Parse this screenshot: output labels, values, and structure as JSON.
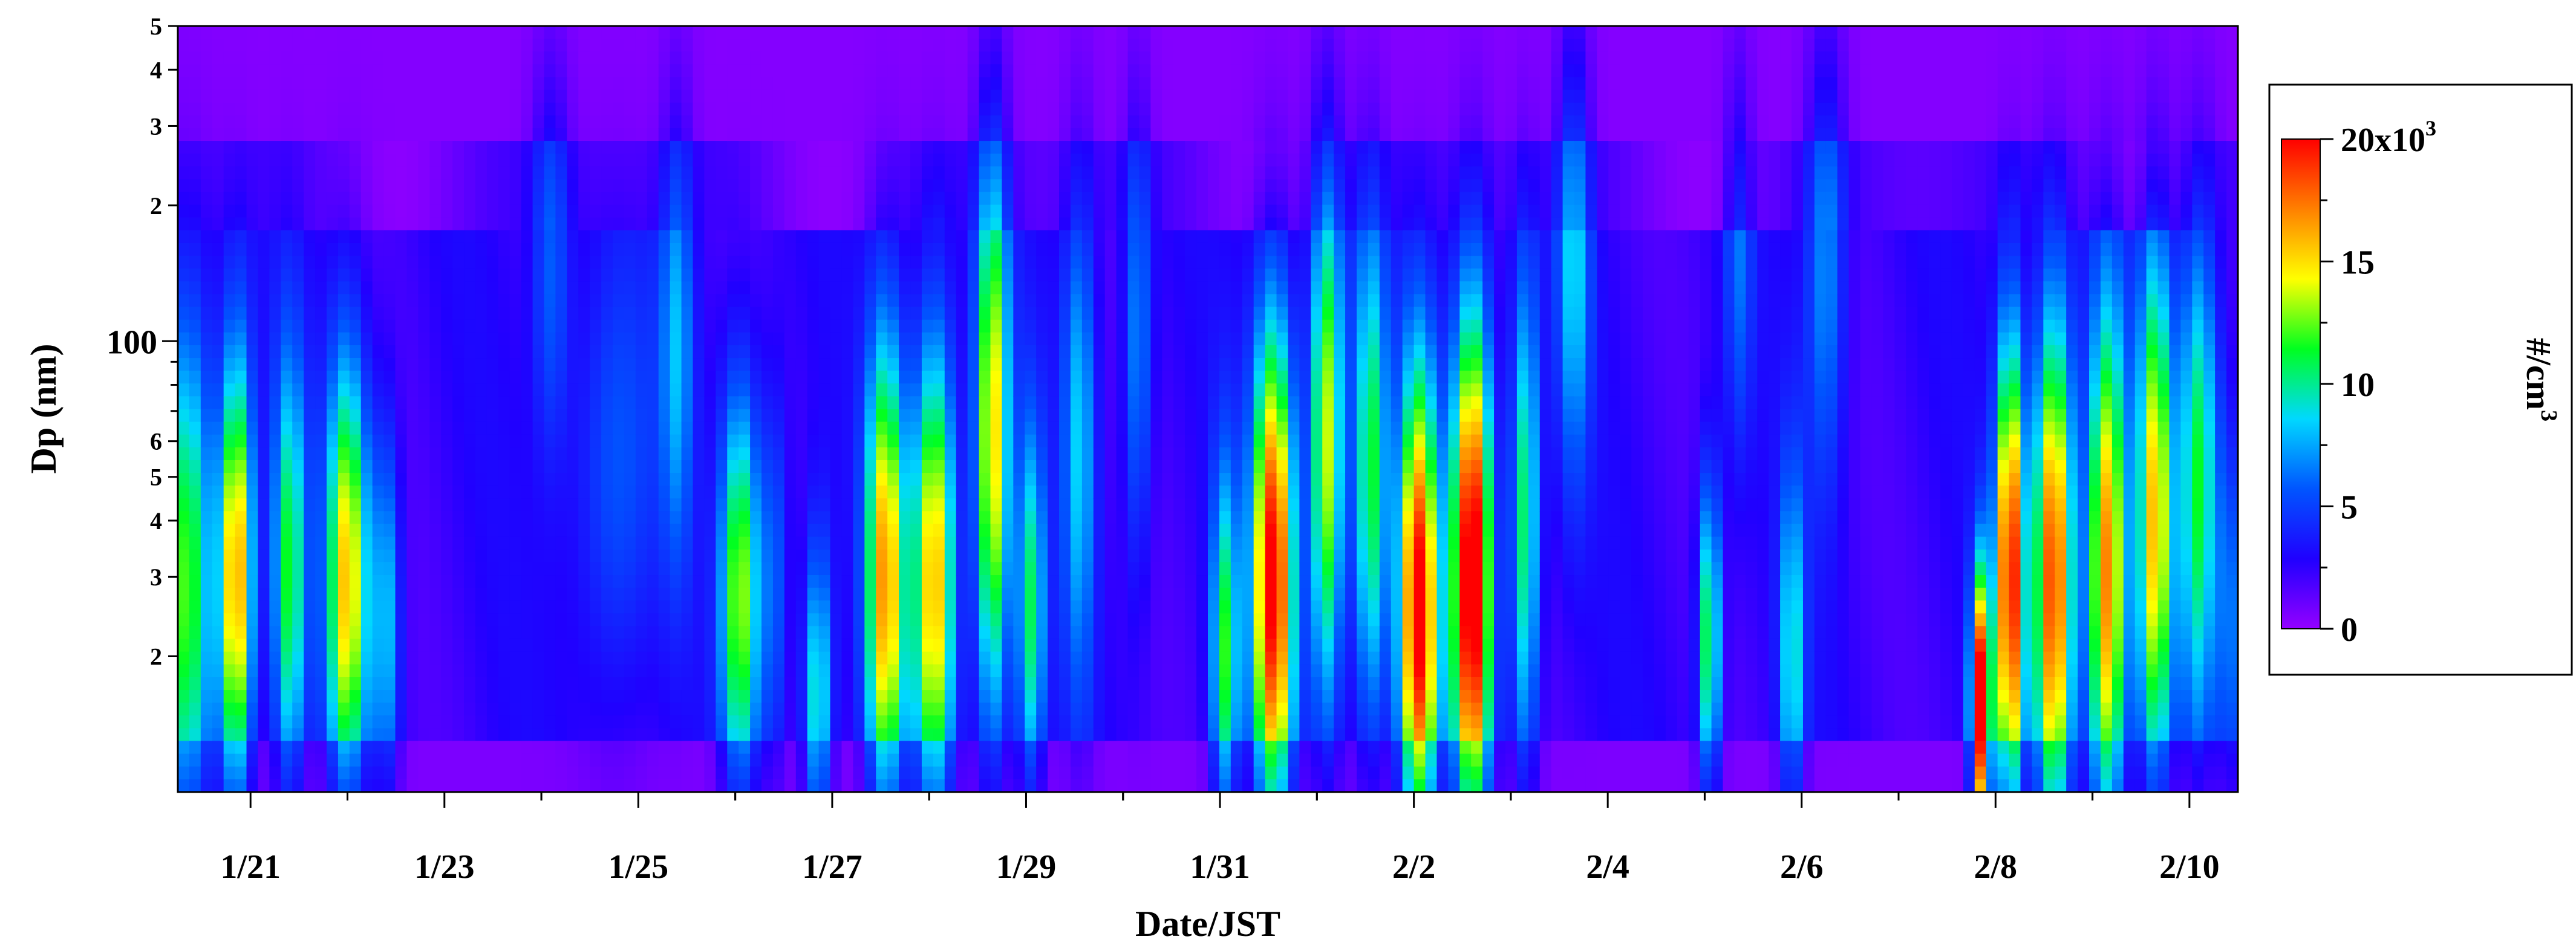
{
  "chart_data": {
    "type": "heatmap",
    "title": "",
    "xlabel": "Date/JST",
    "ylabel": "Dp (nm)",
    "y_scale": "log",
    "ylim": [
      10,
      500
    ],
    "x_ticks": [
      "1/21",
      "1/23",
      "1/25",
      "1/27",
      "1/29",
      "1/31",
      "2/2",
      "2/4",
      "2/6",
      "2/8",
      "2/10"
    ],
    "x_tick_days": [
      0.75,
      2.75,
      4.75,
      6.75,
      8.75,
      10.75,
      12.75,
      14.75,
      16.75,
      18.75,
      20.75
    ],
    "xlim_days": [
      0,
      21.25
    ],
    "y_major_ticks": [
      {
        "value": 100,
        "label": "100"
      }
    ],
    "y_minor_ticks": [
      {
        "value": 20,
        "label": "2"
      },
      {
        "value": 30,
        "label": "3"
      },
      {
        "value": 40,
        "label": "4"
      },
      {
        "value": 50,
        "label": "5"
      },
      {
        "value": 60,
        "label": "6"
      },
      {
        "value": 200,
        "label": "2"
      },
      {
        "value": 300,
        "label": "3"
      },
      {
        "value": 400,
        "label": "4"
      },
      {
        "value": 500,
        "label": "5"
      }
    ],
    "colorbar": {
      "label": "#/cm",
      "label_superscript": "3",
      "range": [
        0,
        20000
      ],
      "ticks": [
        {
          "value": 0,
          "label": "0"
        },
        {
          "value": 5000,
          "label": "5"
        },
        {
          "value": 10000,
          "label": "10"
        },
        {
          "value": 15000,
          "label": "15"
        },
        {
          "value": 20000,
          "label": "20x10",
          "superscript": "3"
        }
      ],
      "colors": [
        "#9400ff",
        "#2000ff",
        "#0055ff",
        "#00d8ff",
        "#00ff20",
        "#ffff00",
        "#ff8000",
        "#ff0000"
      ]
    },
    "events": [
      {
        "day": 0.1,
        "width": 0.18,
        "peak": 10000,
        "dp": 30,
        "sigma": 0.42
      },
      {
        "day": 0.6,
        "width": 0.12,
        "peak": 15000,
        "dp": 30,
        "sigma": 0.35
      },
      {
        "day": 1.15,
        "width": 0.12,
        "peak": 9000,
        "dp": 30,
        "sigma": 0.35
      },
      {
        "day": 1.75,
        "width": 0.15,
        "peak": 13000,
        "dp": 30,
        "sigma": 0.35
      },
      {
        "day": 2.15,
        "width": 0.1,
        "peak": 6000,
        "dp": 25,
        "sigma": 0.3
      },
      {
        "day": 3.85,
        "width": 0.14,
        "peak": 4000,
        "dp": 150,
        "sigma": 0.3
      },
      {
        "day": 4.5,
        "width": 0.3,
        "peak": 3500,
        "dp": 50,
        "sigma": 0.35
      },
      {
        "day": 5.15,
        "width": 0.12,
        "peak": 5000,
        "dp": 100,
        "sigma": 0.35
      },
      {
        "day": 5.8,
        "width": 0.14,
        "peak": 11000,
        "dp": 28,
        "sigma": 0.32
      },
      {
        "day": 6.15,
        "width": 0.1,
        "peak": 4000,
        "dp": 30,
        "sigma": 0.3
      },
      {
        "day": 6.6,
        "width": 0.1,
        "peak": 8000,
        "dp": 16,
        "sigma": 0.25
      },
      {
        "day": 7.3,
        "width": 0.14,
        "peak": 14000,
        "dp": 30,
        "sigma": 0.38
      },
      {
        "day": 7.8,
        "width": 0.15,
        "peak": 14000,
        "dp": 30,
        "sigma": 0.38
      },
      {
        "day": 8.4,
        "width": 0.12,
        "peak": 13000,
        "dp": 60,
        "sigma": 0.45
      },
      {
        "day": 8.8,
        "width": 0.1,
        "peak": 8000,
        "dp": 25,
        "sigma": 0.3
      },
      {
        "day": 9.3,
        "width": 0.12,
        "peak": 6000,
        "dp": 60,
        "sigma": 0.4
      },
      {
        "day": 9.9,
        "width": 0.1,
        "peak": 5000,
        "dp": 100,
        "sigma": 0.35
      },
      {
        "day": 10.8,
        "width": 0.1,
        "peak": 9000,
        "dp": 20,
        "sigma": 0.3
      },
      {
        "day": 11.3,
        "width": 0.15,
        "peak": 18000,
        "dp": 30,
        "sigma": 0.4
      },
      {
        "day": 11.85,
        "width": 0.12,
        "peak": 12000,
        "dp": 60,
        "sigma": 0.42
      },
      {
        "day": 12.3,
        "width": 0.12,
        "peak": 9000,
        "dp": 50,
        "sigma": 0.4
      },
      {
        "day": 12.8,
        "width": 0.14,
        "peak": 18000,
        "dp": 25,
        "sigma": 0.38
      },
      {
        "day": 13.35,
        "width": 0.14,
        "peak": 20000,
        "dp": 30,
        "sigma": 0.42
      },
      {
        "day": 13.9,
        "width": 0.1,
        "peak": 9000,
        "dp": 40,
        "sigma": 0.4
      },
      {
        "day": 14.4,
        "width": 0.12,
        "peak": 6000,
        "dp": 150,
        "sigma": 0.35
      },
      {
        "day": 15.8,
        "width": 0.08,
        "peak": 10000,
        "dp": 22,
        "sigma": 0.25
      },
      {
        "day": 16.1,
        "width": 0.1,
        "peak": 3500,
        "dp": 150,
        "sigma": 0.3
      },
      {
        "day": 16.65,
        "width": 0.09,
        "peak": 7000,
        "dp": 20,
        "sigma": 0.3
      },
      {
        "day": 17.0,
        "width": 0.14,
        "peak": 5000,
        "dp": 150,
        "sigma": 0.35
      },
      {
        "day": 18.6,
        "width": 0.07,
        "peak": 20000,
        "dp": 15,
        "sigma": 0.22
      },
      {
        "day": 18.9,
        "width": 0.1,
        "peak": 18000,
        "dp": 30,
        "sigma": 0.38
      },
      {
        "day": 19.35,
        "width": 0.14,
        "peak": 17000,
        "dp": 30,
        "sigma": 0.42
      },
      {
        "day": 19.9,
        "width": 0.14,
        "peak": 15000,
        "dp": 30,
        "sigma": 0.42
      },
      {
        "day": 20.4,
        "width": 0.12,
        "peak": 13000,
        "dp": 40,
        "sigma": 0.42
      },
      {
        "day": 20.85,
        "width": 0.14,
        "peak": 9000,
        "dp": 50,
        "sigma": 0.4
      },
      {
        "day": 21.15,
        "width": 0.06,
        "peak": 5000,
        "dp": 25,
        "sigma": 0.3
      }
    ]
  }
}
